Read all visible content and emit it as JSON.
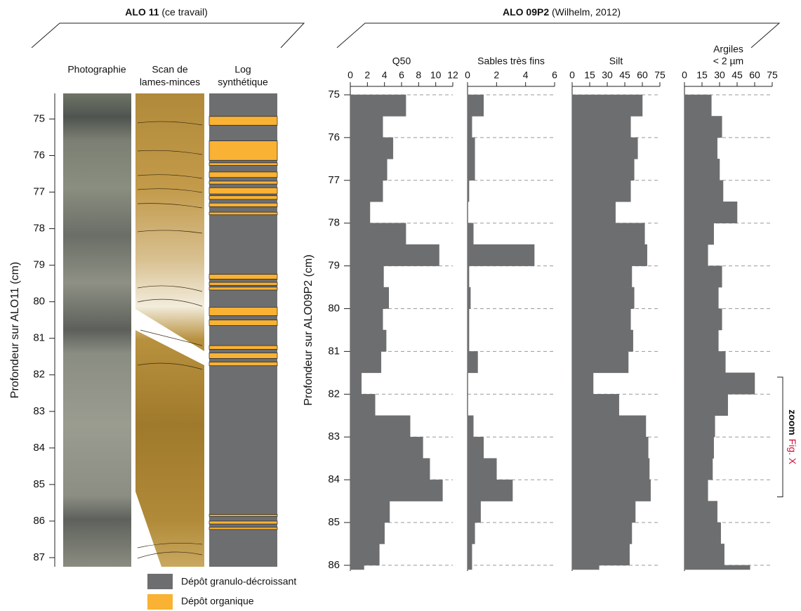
{
  "chart_data": [
    {
      "type": "core-log",
      "title": "ALO 11",
      "subtitle": "(ce travail)",
      "ylabel": "Profondeur sur ALO11 (cm)",
      "ylim": [
        74.3,
        87.25
      ],
      "yticks": [
        75,
        76,
        77,
        78,
        79,
        80,
        81,
        82,
        83,
        84,
        85,
        86,
        87
      ],
      "columns": [
        [
          "Photographie"
        ],
        [
          "Scan de",
          "lames-minces"
        ],
        [
          "Log",
          "synthétique"
        ]
      ],
      "layers": [
        {
          "name": "Dépôt granulo-décroissant",
          "color": "#6d6e70"
        },
        {
          "name": "Dépôt organique",
          "color": "#f9b233",
          "intervals": [
            [
              74.93,
              75.17
            ],
            [
              75.6,
              76.13
            ],
            [
              76.2,
              76.27
            ],
            [
              76.45,
              76.6
            ],
            [
              76.7,
              76.78
            ],
            [
              76.88,
              77.05
            ],
            [
              77.1,
              77.2
            ],
            [
              77.3,
              77.4
            ],
            [
              77.55,
              77.62
            ],
            [
              79.25,
              79.38
            ],
            [
              79.47,
              79.55
            ],
            [
              79.6,
              79.68
            ],
            [
              80.15,
              80.38
            ],
            [
              80.5,
              80.65
            ],
            [
              81.2,
              81.3
            ],
            [
              81.4,
              81.55
            ],
            [
              81.65,
              81.75
            ],
            [
              85.82,
              85.87
            ],
            [
              86.0,
              86.08
            ],
            [
              86.17,
              86.23
            ]
          ]
        }
      ]
    },
    {
      "type": "step-profile",
      "title": "ALO 09P2",
      "subtitle": "(Wilhelm, 2012)",
      "ylabel": "Profondeur sur ALO09P2 (cm)",
      "ylim": [
        75,
        86.1
      ],
      "yticks": [
        75,
        76,
        77,
        78,
        79,
        80,
        81,
        82,
        83,
        84,
        85,
        86
      ],
      "grid": true,
      "color": "#6d6e70",
      "depth_bins": [
        75,
        75.5,
        76,
        76.5,
        77,
        77.5,
        78,
        78.5,
        79,
        79.5,
        80,
        80.5,
        81,
        81.5,
        82,
        82.5,
        83,
        83.5,
        84,
        84.5,
        85,
        85.5,
        86,
        86.1
      ],
      "panels": [
        {
          "title": [
            "Q50"
          ],
          "xlim": [
            0,
            12
          ],
          "xticks": [
            0,
            2,
            4,
            6,
            8,
            10,
            12
          ],
          "values": [
            6.5,
            3.8,
            5.0,
            4.3,
            3.8,
            2.3,
            6.5,
            10.4,
            3.9,
            4.5,
            3.8,
            4.2,
            3.6,
            1.3,
            2.9,
            7.0,
            8.5,
            9.3,
            10.8,
            4.6,
            4.0,
            3.4,
            1.6
          ]
        },
        {
          "title": [
            "Sables très fins"
          ],
          "xlim": [
            0,
            6
          ],
          "xticks": [
            0,
            2,
            4,
            6
          ],
          "values": [
            1.1,
            0.3,
            0.5,
            0.5,
            0.1,
            0,
            0.4,
            4.6,
            0.1,
            0.2,
            0.1,
            0.1,
            0.7,
            0,
            0,
            0.4,
            1.1,
            2.0,
            3.1,
            0.9,
            0.5,
            0.3,
            0.3
          ]
        },
        {
          "title": [
            "Silt"
          ],
          "xlim": [
            0,
            75
          ],
          "xticks": [
            0,
            15,
            30,
            45,
            60,
            75
          ],
          "values": [
            60,
            50,
            56,
            53,
            50,
            37,
            62,
            64,
            51,
            53,
            50,
            52,
            48,
            18,
            40,
            63,
            65,
            66,
            67,
            54,
            51,
            49,
            23
          ]
        },
        {
          "title": [
            "Argiles",
            "< 2 µm"
          ],
          "xlim": [
            0,
            75
          ],
          "xticks": [
            0,
            15,
            30,
            45,
            60,
            75
          ],
          "values": [
            23,
            32,
            28,
            30,
            33,
            45,
            25,
            20,
            32,
            29,
            32,
            29,
            35,
            60,
            37,
            26,
            25,
            24,
            20,
            28,
            31,
            34,
            56
          ]
        }
      ],
      "annotation": {
        "text": "zoom",
        "ref": "Fig. X",
        "range": [
          81.6,
          84.4
        ]
      }
    }
  ]
}
